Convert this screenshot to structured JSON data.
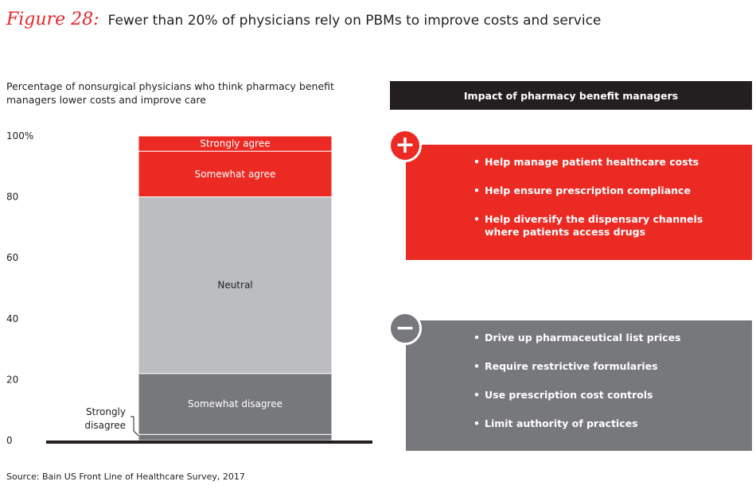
{
  "figure": {
    "label": "Figure 28:",
    "title": "Fewer than 20% of physicians rely on PBMs to improve costs and service"
  },
  "chart_data": {
    "type": "bar",
    "stacked": true,
    "subtitle": "Percentage of nonsurgical physicians who think pharmacy benefit managers lower costs and improve care",
    "ylim": [
      0,
      100
    ],
    "yticks": [
      "100%",
      "80",
      "60",
      "40",
      "20",
      "0"
    ],
    "grid": false,
    "series": [
      {
        "name": "Strongly disagree",
        "value": 2,
        "color": "#77787b",
        "label": "Strongly disagree",
        "label_position": "outside-left"
      },
      {
        "name": "Somewhat disagree",
        "value": 20,
        "color": "#77787b",
        "label": "Somewhat disagree"
      },
      {
        "name": "Neutral",
        "value": 58,
        "color": "#bcbdc0",
        "label": "Neutral"
      },
      {
        "name": "Somewhat agree",
        "value": 15,
        "color": "#ec2a24",
        "label": "Somewhat agree"
      },
      {
        "name": "Strongly agree",
        "value": 5,
        "color": "#ec2a24",
        "label": "Strongly agree"
      }
    ]
  },
  "impact": {
    "header": "Impact of pharmacy benefit managers",
    "positive": {
      "symbol": "+",
      "color": "#ec2a24",
      "items": [
        "Help manage patient healthcare costs",
        "Help ensure prescription compliance",
        "Help diversify the dispensary channels where patients access drugs"
      ]
    },
    "negative": {
      "symbol": "−",
      "color": "#77787b",
      "items": [
        "Drive up pharmaceutical list prices",
        "Require restrictive formularies",
        "Use prescription cost controls",
        "Limit authority of practices"
      ]
    }
  },
  "source": "Source: Bain US Front Line of Healthcare Survey, 2017"
}
